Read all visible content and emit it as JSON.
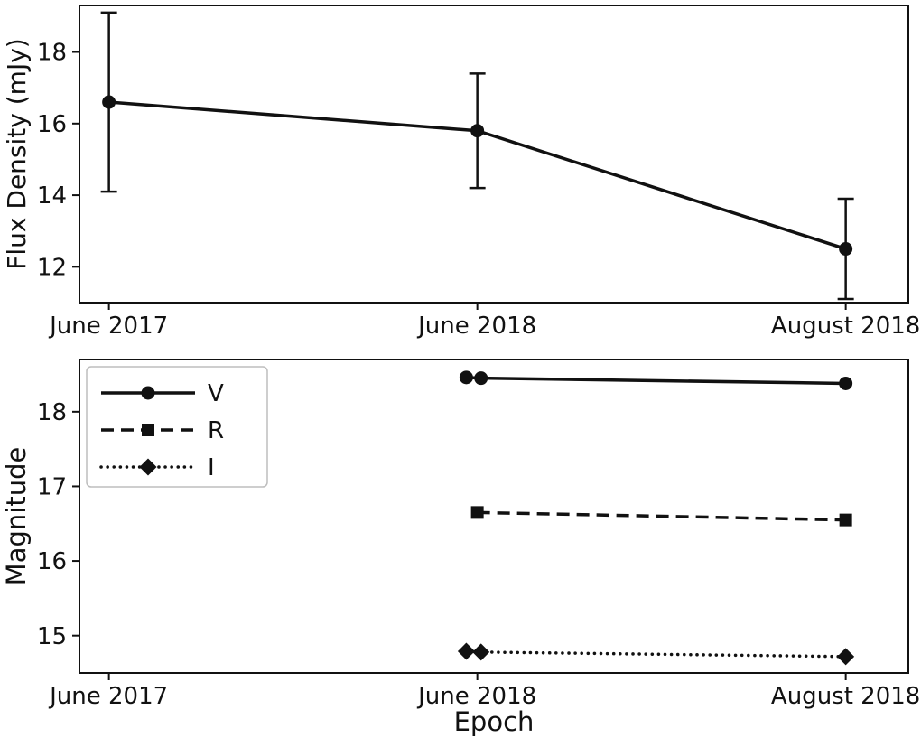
{
  "figure": {
    "background": "#ffffff",
    "ink_color": "#111111",
    "legend_border_color": "#bdbdbd"
  },
  "chart_data": [
    {
      "id": "flux-chart",
      "type": "line",
      "title": "",
      "ylabel": "Flux Density (mJy)",
      "xlabel": "",
      "categories": [
        "June 2017",
        "June 2018",
        "August 2018"
      ],
      "xlim": [
        -0.08,
        2.17
      ],
      "ylim": [
        11.0,
        19.3
      ],
      "yticks": [
        12,
        14,
        16,
        18
      ],
      "grid": false,
      "legend": null,
      "series": [
        {
          "name": "flux-density",
          "x": [
            0,
            1,
            2
          ],
          "values": [
            16.6,
            15.8,
            12.5
          ],
          "errors": [
            2.5,
            1.6,
            1.4
          ],
          "line_style": "solid",
          "marker": "circle"
        }
      ]
    },
    {
      "id": "magnitude-chart",
      "type": "line",
      "title": "",
      "ylabel": "Magnitude",
      "xlabel": "Epoch",
      "categories": [
        "June 2017",
        "June 2018",
        "August 2018"
      ],
      "xlim": [
        -0.08,
        2.17
      ],
      "ylim": [
        14.5,
        18.7
      ],
      "yticks": [
        15,
        16,
        17,
        18
      ],
      "grid": false,
      "legend": {
        "position": "upper-left",
        "entries": [
          "V",
          "R",
          "I"
        ]
      },
      "series": [
        {
          "name": "V",
          "x": [
            0.97,
            1.01,
            2
          ],
          "values": [
            18.46,
            18.45,
            18.38
          ],
          "line_style": "solid",
          "marker": "circle"
        },
        {
          "name": "R",
          "x": [
            1,
            2
          ],
          "values": [
            16.65,
            16.55
          ],
          "line_style": "dashed",
          "marker": "square"
        },
        {
          "name": "I",
          "x": [
            0.97,
            1.01,
            2
          ],
          "values": [
            14.79,
            14.78,
            14.72
          ],
          "line_style": "dotted",
          "marker": "diamond"
        }
      ]
    }
  ]
}
